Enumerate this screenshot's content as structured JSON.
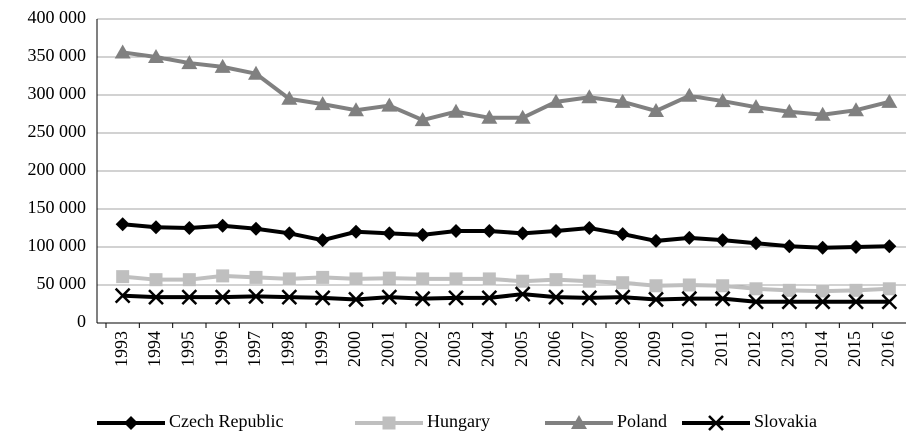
{
  "chart_data": {
    "type": "line",
    "categories": [
      "1993",
      "1994",
      "1995",
      "1996",
      "1997",
      "1998",
      "1999",
      "2000",
      "2001",
      "2002",
      "2003",
      "2004",
      "2005",
      "2006",
      "2007",
      "2008",
      "2009",
      "2010",
      "2011",
      "2012",
      "2013",
      "2014",
      "2015",
      "2016"
    ],
    "series": [
      {
        "name": "Czech Republic",
        "color": "#000000",
        "marker": "diamond",
        "values": [
          130000,
          126000,
          125000,
          128000,
          124000,
          118000,
          109000,
          120000,
          118000,
          116000,
          121000,
          121000,
          118000,
          121000,
          125000,
          117000,
          108000,
          112000,
          109000,
          105000,
          101000,
          99000,
          100000,
          101000
        ]
      },
      {
        "name": "Hungary",
        "color": "#bfbfbf",
        "marker": "square",
        "values": [
          61000,
          57000,
          57000,
          62000,
          60000,
          58000,
          60000,
          58000,
          59000,
          58000,
          58000,
          58000,
          55000,
          57000,
          55000,
          53000,
          49000,
          50000,
          49000,
          45000,
          43000,
          42000,
          43000,
          45000
        ]
      },
      {
        "name": "Poland",
        "color": "#808080",
        "marker": "triangle",
        "values": [
          356000,
          350000,
          342000,
          337000,
          328000,
          295000,
          288000,
          280000,
          286000,
          267000,
          278000,
          270000,
          270000,
          291000,
          297000,
          291000,
          279000,
          299000,
          292000,
          284000,
          278000,
          274000,
          280000,
          291000
        ]
      },
      {
        "name": "Slovakia",
        "color": "#000000",
        "marker": "x",
        "values": [
          36000,
          34000,
          34000,
          34000,
          35000,
          34000,
          33000,
          31000,
          34000,
          32000,
          33000,
          33000,
          38000,
          34000,
          33000,
          34000,
          31000,
          32000,
          32000,
          28000,
          28000,
          28000,
          28000,
          28000
        ]
      }
    ],
    "ylim": [
      0,
      400000
    ],
    "yticks": [
      0,
      {
        "value": 50000,
        "label": "50 000"
      },
      {
        "value": 100000,
        "label": "100 000"
      },
      {
        "value": 150000,
        "label": "150 000"
      },
      {
        "value": 200000,
        "label": "200 000"
      },
      {
        "value": 250000,
        "label": "250 000"
      },
      {
        "value": 300000,
        "label": "300 000"
      },
      {
        "value": 350000,
        "label": "350 000"
      },
      {
        "value": 400000,
        "label": "400 000"
      }
    ],
    "grid": true,
    "legend": "bottom"
  }
}
